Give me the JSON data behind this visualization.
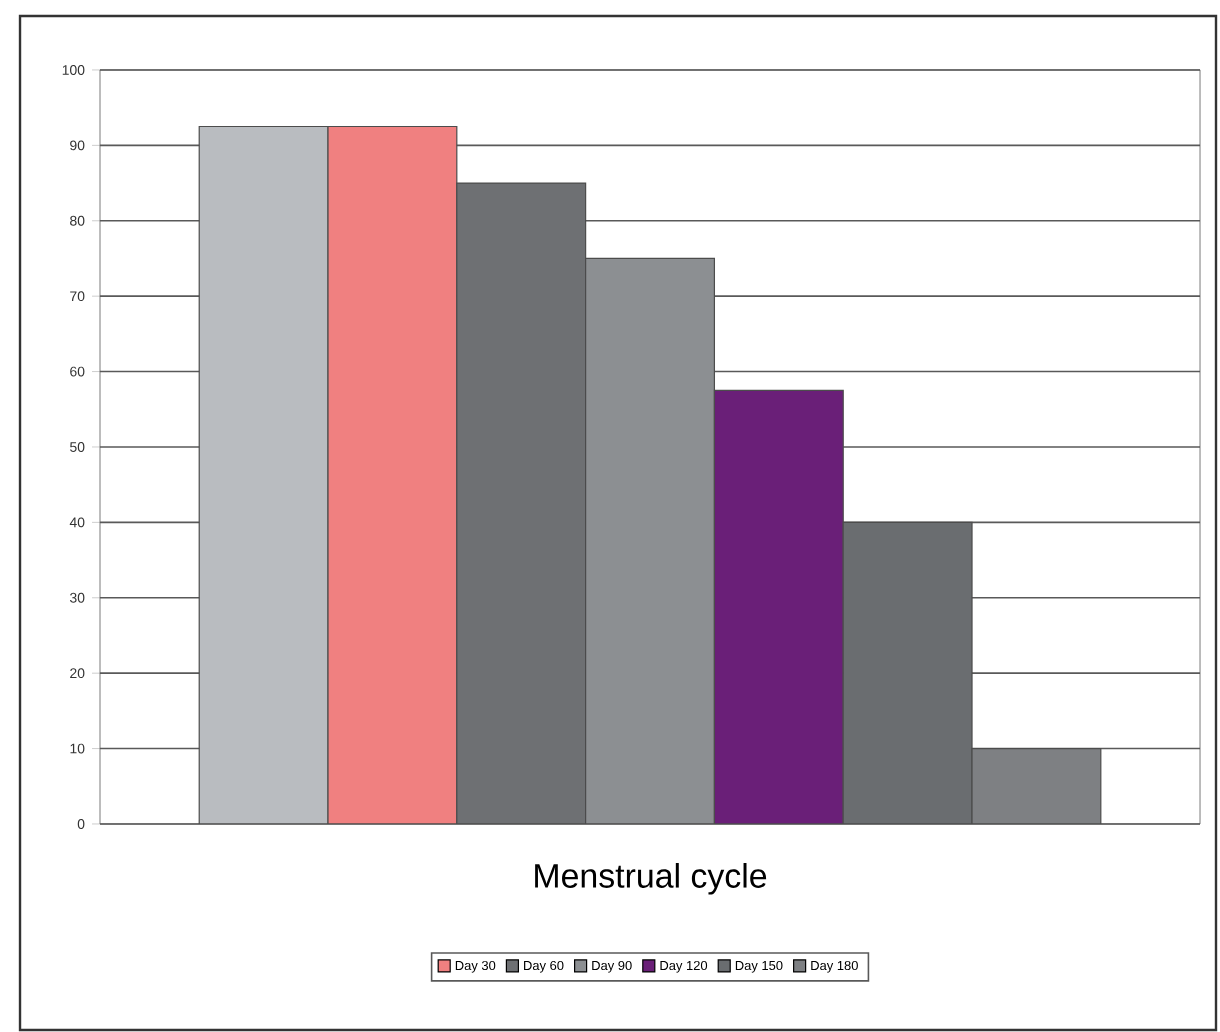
{
  "chart_data": {
    "type": "bar",
    "xlabel": "Menstrual cycle",
    "categories": [
      null
    ],
    "series": [
      {
        "color": "#b9bcc0",
        "values": [
          92.5
        ]
      },
      {
        "name": "Day 30",
        "color": "#f08080",
        "values": [
          92.5
        ]
      },
      {
        "name": "Day 60",
        "color": "#6e7073",
        "values": [
          85
        ]
      },
      {
        "name": "Day 90",
        "color": "#8c8f92",
        "values": [
          75
        ]
      },
      {
        "name": "Day 120",
        "color": "#6a1f78",
        "values": [
          57.5
        ]
      },
      {
        "name": "Day 150",
        "color": "#6a6d70",
        "values": [
          40
        ]
      },
      {
        "name": "Day 180",
        "color": "#7e8083",
        "values": [
          10
        ]
      }
    ],
    "ylim": [
      0,
      100
    ],
    "yticks": [
      0,
      10,
      20,
      30,
      40,
      50,
      60,
      70,
      80,
      90,
      100
    ],
    "grid": "y",
    "legend": "bottom"
  }
}
